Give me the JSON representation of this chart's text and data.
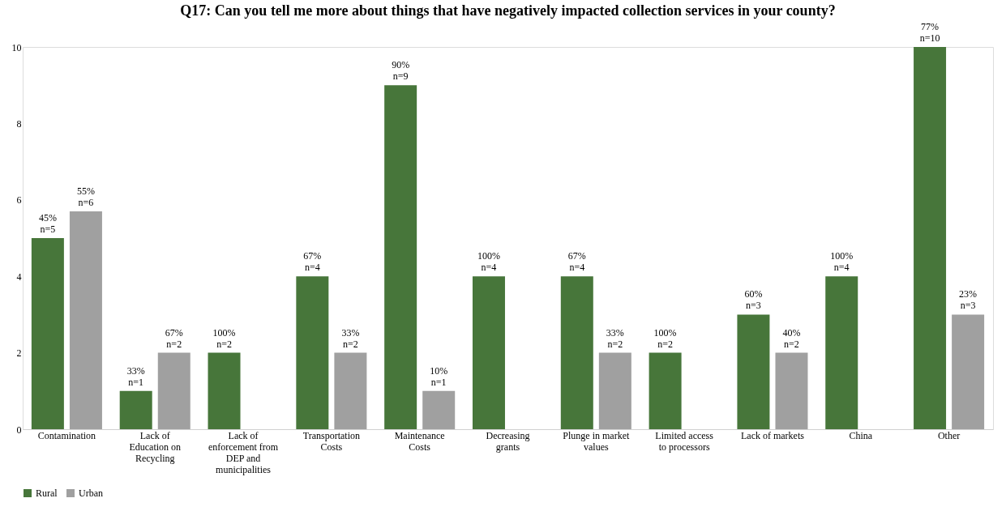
{
  "chart_data": {
    "type": "bar",
    "title": "Q17: Can you tell me more about things that have negatively impacted collection services in your county?",
    "categories": [
      "Contamination",
      "Lack of Education on Recycling",
      "Lack of enforcement from DEP and municipalities",
      "Transportation Costs",
      "Maintenance Costs",
      "Decreasing grants",
      "Plunge in market values",
      "Limited access to processors",
      "Lack of markets",
      "China",
      "Other"
    ],
    "series": [
      {
        "name": "Rural",
        "color": "#47763a",
        "values": [
          5,
          1,
          2,
          4,
          9,
          4,
          4,
          2,
          3,
          4,
          10
        ],
        "value_labels": [
          "45%\nn=5",
          "33%\nn=1",
          "100%\nn=2",
          "67%\nn=4",
          "90%\nn=9",
          "100%\nn=4",
          "67%\nn=4",
          "100%\nn=2",
          "60%\nn=3",
          "100%\nn=4",
          "77%\nn=10"
        ]
      },
      {
        "name": "Urban",
        "color": "#a0a0a0",
        "values": [
          5.7,
          2,
          null,
          2,
          1,
          null,
          2,
          null,
          2,
          null,
          3
        ],
        "value_labels": [
          "55%\nn=6",
          "67%\nn=2",
          null,
          "33%\nn=2",
          "10%\nn=1",
          null,
          "33%\nn=2",
          null,
          "40%\nn=2",
          null,
          "23%\nn=3"
        ]
      }
    ],
    "ylim": [
      0,
      10
    ],
    "yticks": [
      0,
      2,
      4,
      6,
      8,
      10
    ],
    "grid": false,
    "legend": "bottom"
  }
}
